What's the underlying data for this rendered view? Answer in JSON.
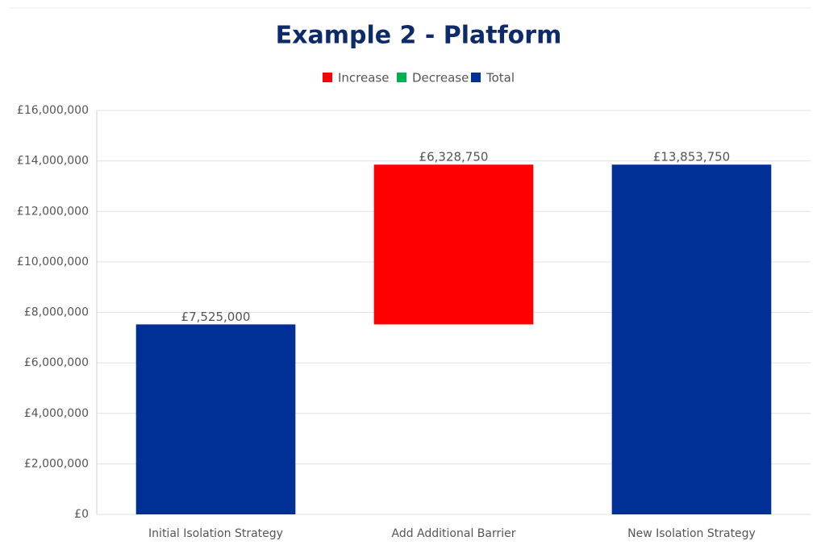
{
  "chart_data": {
    "type": "waterfall",
    "title": "Example 2 - Platform",
    "legend": [
      {
        "name": "Increase",
        "color": "#ff0000"
      },
      {
        "name": "Decrease",
        "color": "#00b050"
      },
      {
        "name": "Total",
        "color": "#002f96"
      }
    ],
    "legend_position": "top",
    "categories": [
      "Initial Isolation Strategy",
      "Add Additional Barrier",
      "New Isolation Strategy"
    ],
    "kinds": [
      "Total",
      "Increase",
      "Total"
    ],
    "values": [
      7525000,
      6328750,
      13853750
    ],
    "value_labels": [
      "£7,525,000",
      "£6,328,750",
      "£13,853,750"
    ],
    "ylim": [
      0,
      16000000
    ],
    "yticks": [
      {
        "value": 0,
        "label": "£0"
      },
      {
        "value": 2000000,
        "label": "£2,000,000"
      },
      {
        "value": 4000000,
        "label": "£4,000,000"
      },
      {
        "value": 6000000,
        "label": "£6,000,000"
      },
      {
        "value": 8000000,
        "label": "£8,000,000"
      },
      {
        "value": 10000000,
        "label": "£10,000,000"
      },
      {
        "value": 12000000,
        "label": "£12,000,000"
      },
      {
        "value": 14000000,
        "label": "£14,000,000"
      },
      {
        "value": 16000000,
        "label": "£16,000,000"
      }
    ],
    "grid": true
  }
}
